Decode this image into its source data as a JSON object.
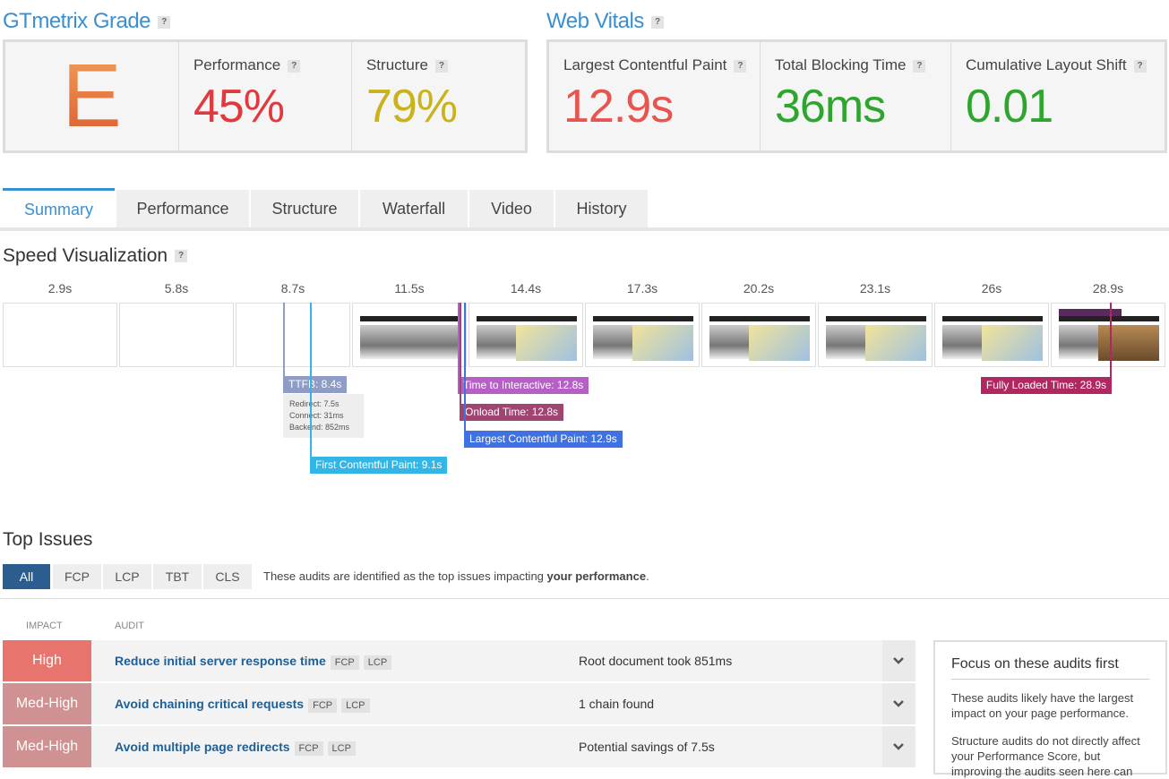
{
  "help_icon": "?",
  "grade": {
    "title": "GTmetrix Grade",
    "letter": "E",
    "metrics": [
      {
        "label": "Performance",
        "value": "45%"
      },
      {
        "label": "Structure",
        "value": "79%"
      }
    ]
  },
  "web_vitals": {
    "title": "Web Vitals",
    "metrics": [
      {
        "label": "Largest Contentful Paint",
        "value": "12.9s"
      },
      {
        "label": "Total Blocking Time",
        "value": "36ms"
      },
      {
        "label": "Cumulative Layout Shift",
        "value": "0.01"
      }
    ]
  },
  "tabs": {
    "items": [
      "Summary",
      "Performance",
      "Structure",
      "Waterfall",
      "Video",
      "History"
    ],
    "active": "Summary"
  },
  "speed_visualization": {
    "title": "Speed Visualization",
    "frames": [
      "2.9s",
      "5.8s",
      "8.7s",
      "11.5s",
      "14.4s",
      "17.3s",
      "20.2s",
      "23.1s",
      "26s",
      "28.9s"
    ],
    "markers": [
      {
        "label": "TTFB: 8.4s",
        "details": [
          "Redirect: 7.5s",
          "Connect: 31ms",
          "Backend: 852ms"
        ]
      },
      {
        "label": "First Contentful Paint: 9.1s"
      },
      {
        "label": "Time to Interactive: 12.8s"
      },
      {
        "label": "Onload Time: 12.8s"
      },
      {
        "label": "Largest Contentful Paint: 12.9s"
      },
      {
        "label": "Fully Loaded Time: 28.9s"
      }
    ]
  },
  "top_issues": {
    "title": "Top Issues",
    "filters": [
      "All",
      "FCP",
      "LCP",
      "TBT",
      "CLS"
    ],
    "active_filter": "All",
    "description": {
      "text": "These audits are identified as the top issues impacting ",
      "emphasis": "your performance",
      "end": "."
    },
    "columns": [
      "IMPACT",
      "AUDIT"
    ],
    "rows": [
      {
        "impact": "High",
        "audit": "Reduce initial server response time",
        "tags": [
          "FCP",
          "LCP"
        ],
        "result": "Root document took 851ms"
      },
      {
        "impact": "Med-High",
        "audit": "Avoid chaining critical requests",
        "tags": [
          "FCP",
          "LCP"
        ],
        "result": "1 chain found"
      },
      {
        "impact": "Med-High",
        "audit": "Avoid multiple page redirects",
        "tags": [
          "FCP",
          "LCP"
        ],
        "result": "Potential savings of 7.5s"
      }
    ]
  },
  "sidebar": {
    "title": "Focus on these audits first",
    "paragraphs": [
      "These audits likely have the largest impact on your page performance.",
      "Structure audits do not directly affect your Performance Score, but improving the audits seen here can"
    ]
  }
}
